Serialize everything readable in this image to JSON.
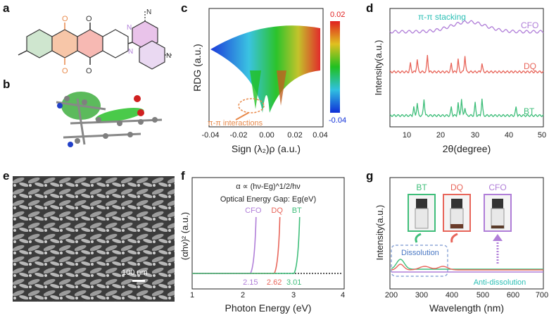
{
  "panels": {
    "a": "a",
    "b": "b",
    "c": "c",
    "d": "d",
    "e": "e",
    "f": "f",
    "g": "g"
  },
  "colors": {
    "orange": "#e8894a",
    "violet": "#b07ed8",
    "green": "#3fbe7a",
    "red": "#e8655a",
    "teal": "#2bbfb5",
    "blue": "#4a78c4",
    "gray": "#9a9a9a"
  },
  "panel_a": {
    "atom_O_top": "O",
    "atom_O_bottom": "O",
    "atom_N_1": "N",
    "atom_N_2": "N",
    "atom_N_3": "N",
    "atom_N_4": "N"
  },
  "panel_c": {
    "ylabel": "RDG (a.u.)",
    "xlabel": "Sign (λ₂)ρ (a.u.)",
    "xticks": [
      "-0.04",
      "-0.02",
      "0.00",
      "0.02",
      "0.04"
    ],
    "colorbar_max": "0.02",
    "colorbar_min": "-0.04",
    "annotation": "π-π interactions"
  },
  "panel_d": {
    "ylabel": "Intensity(a.u.)",
    "xlabel": "2θ(degree)",
    "xticks": [
      "10",
      "20",
      "30",
      "40",
      "50"
    ],
    "annotation": "π-π stacking",
    "series": [
      {
        "name": "CFO",
        "color": "#b07ed8"
      },
      {
        "name": "DQ",
        "color": "#e8655a"
      },
      {
        "name": "BT",
        "color": "#3fbe7a"
      }
    ]
  },
  "panel_e": {
    "scalebar": "100 nm"
  },
  "panel_f": {
    "formula": "α ∝ (hν-Eg)^1/2/hν",
    "subtitle": "Optical Energy Gap: Eg(eV)",
    "ylabel": "(αhν)² (a.u.)",
    "xlabel": "Photon Energy (eV)",
    "xticks": [
      "1",
      "2",
      "3",
      "4"
    ],
    "series": [
      {
        "name": "CFO",
        "gap": "2.15",
        "color": "#b07ed8"
      },
      {
        "name": "DQ",
        "gap": "2.62",
        "color": "#e8655a"
      },
      {
        "name": "BT",
        "gap": "3.01",
        "color": "#3fbe7a"
      }
    ]
  },
  "panel_g": {
    "ylabel": "Intensity(a.u.)",
    "xlabel": "Wavelength (nm)",
    "xticks": [
      "200",
      "300",
      "400",
      "500",
      "600",
      "700"
    ],
    "vials": [
      {
        "label": "BT",
        "color": "#3fbe7a"
      },
      {
        "label": "DQ",
        "color": "#e8655a"
      },
      {
        "label": "CFO",
        "color": "#b07ed8"
      }
    ],
    "dissolution": "Dissolution",
    "anti_dissolution": "Anti-dissolution"
  },
  "chart_data": [
    {
      "type": "line",
      "panel": "d",
      "xlabel": "2θ(degree)",
      "ylabel": "Intensity(a.u.)",
      "xlim": [
        5,
        50
      ],
      "series": [
        {
          "name": "CFO",
          "peaks_x": [
            28
          ],
          "broad": true
        },
        {
          "name": "DQ",
          "peaks_x": [
            11,
            13,
            16,
            23,
            25,
            27,
            32
          ]
        },
        {
          "name": "BT",
          "peaks_x": [
            12,
            13,
            15,
            23,
            25,
            26,
            27,
            30,
            32,
            42
          ]
        }
      ]
    },
    {
      "type": "line",
      "panel": "f",
      "xlabel": "Photon Energy (eV)",
      "ylabel": "(αhν)² (a.u.)",
      "xlim": [
        1,
        4
      ],
      "series": [
        {
          "name": "CFO",
          "onset": 2.15
        },
        {
          "name": "DQ",
          "onset": 2.62
        },
        {
          "name": "BT",
          "onset": 3.01
        }
      ]
    },
    {
      "type": "line",
      "panel": "g",
      "xlabel": "Wavelength (nm)",
      "ylabel": "Intensity(a.u.)",
      "xlim": [
        200,
        700
      ],
      "series": [
        {
          "name": "BT",
          "peaks_x": [
            230
          ]
        },
        {
          "name": "DQ",
          "peaks_x": [
            230,
            300,
            370
          ]
        },
        {
          "name": "CFO",
          "peaks_x": []
        }
      ]
    }
  ]
}
